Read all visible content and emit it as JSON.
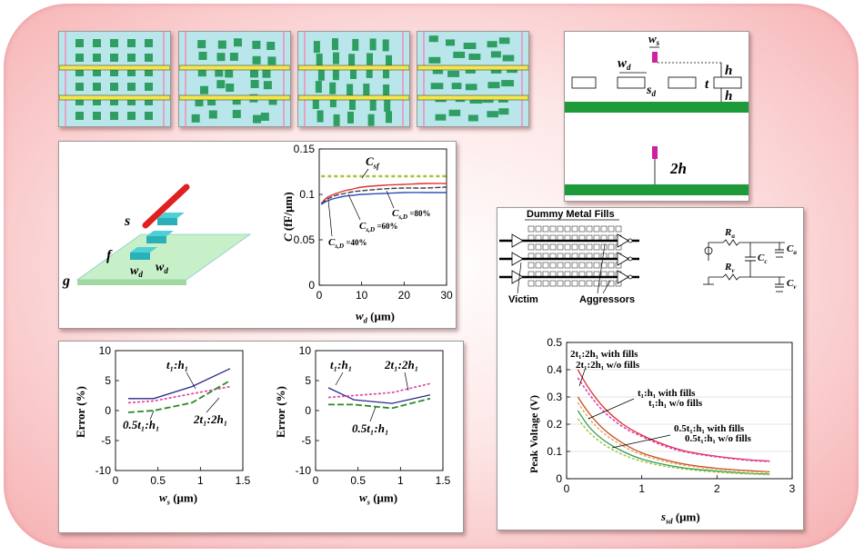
{
  "colors": {
    "fill_thumb_bg": "#b8e6ea",
    "fill_square": "#2e9e62",
    "signal_line": "#f2e84a",
    "ground_plane": "#1f9a3a",
    "c_sf_line": "#a6c23a",
    "cs_line_1": "#e23030",
    "cs_line_2": "#404040",
    "cs_line_3": "#3050c0"
  },
  "geometry_panel": {
    "ws_label": "w",
    "ws_sub": "s",
    "wd_label": "w",
    "wd_sub": "d",
    "sd_label": "s",
    "sd_sub": "d",
    "h_label": "h",
    "t_label": "t",
    "h2_label": "h",
    "twoh_label": "2h"
  },
  "structure_3d": {
    "s_label": "s",
    "f_label": "f",
    "g_label": "g",
    "wd1_label": "w",
    "wd1_sub": "d",
    "wd2_label": "w",
    "wd2_sub": "d"
  },
  "chart_capacitance": {
    "ytitle": "C",
    "yunit": "(fF/μm)",
    "xtitle": "w",
    "xsub": "d",
    "xunit": "(μm)",
    "yticks": [
      "0.15",
      "0.1",
      "0.05",
      "0"
    ],
    "xticks": [
      "0",
      "10",
      "20",
      "30"
    ],
    "csf_main": "C",
    "csf_sub": "sf",
    "ann": [
      {
        "main": "C",
        "sub": "s,D",
        "tail": " =80%"
      },
      {
        "main": "C",
        "sub": "s,D",
        "tail": " =60%"
      },
      {
        "main": "C",
        "sub": "s,D",
        "tail": " =40%"
      }
    ]
  },
  "chart_error_left": {
    "ytitle": "Error (%)",
    "xtitle": "w",
    "xsub": "s",
    "xunit": "(μm)",
    "yticks": [
      "10",
      "5",
      "0",
      "-5",
      "-10"
    ],
    "xticks": [
      "0",
      "0.5",
      "1",
      "1.5"
    ],
    "legend": [
      {
        "main": "t₁:h₁"
      },
      {
        "main": "0.5t₁:h₁"
      },
      {
        "main": "2t₁:2h₁"
      }
    ]
  },
  "chart_error_right": {
    "ytitle": "Error (%)",
    "xtitle": "w",
    "xsub": "s",
    "xunit": "(μm)",
    "yticks": [
      "10",
      "5",
      "0",
      "-5",
      "-10"
    ],
    "xticks": [
      "0",
      "0.5",
      "1",
      "1.5"
    ],
    "legend": [
      {
        "main": "t₁:h₁"
      },
      {
        "main": "2t₁:2h₁"
      },
      {
        "main": "0.5t₁:h₁"
      }
    ]
  },
  "circuit_panel": {
    "dummy_fills_label": "Dummy Metal Fills",
    "victim_label": "Victim",
    "aggressors_label": "Aggressors",
    "ra_label": "R",
    "ra_sub": "a",
    "rv_label": "R",
    "rv_sub": "v",
    "cc_label": "C",
    "cc_sub": "c",
    "ca_label": "C",
    "ca_sub": "a",
    "cv_label": "C",
    "cv_sub": "v"
  },
  "chart_peak": {
    "ytitle": "Peak Voltage (V)",
    "xtitle": "s",
    "xsub": "sd",
    "xunit": "(μm)",
    "yticks": [
      "0.5",
      "0.4",
      "0.3",
      "0.2",
      "0.1",
      "0"
    ],
    "xticks": [
      "0",
      "1",
      "2",
      "3"
    ],
    "legend": [
      "2t₁:2h₁ with fills",
      "2t₁:2h₁ w/o fills",
      "t₁:h₁ with fills",
      "t₁:h₁ w/o fills",
      "0.5t₁:h₁ with fills",
      "0.5t₁:h₁ w/o fills"
    ]
  },
  "chart_data": [
    {
      "type": "line",
      "title": "",
      "xlabel": "w_d (μm)",
      "ylabel": "C (fF/μm)",
      "xlim": [
        0,
        30
      ],
      "ylim": [
        0,
        0.15
      ],
      "x": [
        0.5,
        2,
        4,
        6,
        8,
        10,
        15,
        20,
        25,
        30
      ],
      "series": [
        {
          "name": "C_sf",
          "values": [
            0.12,
            0.12,
            0.12,
            0.12,
            0.12,
            0.12,
            0.12,
            0.12,
            0.12,
            0.12
          ]
        },
        {
          "name": "C_s,D =80%",
          "values": [
            0.09,
            0.097,
            0.101,
            0.104,
            0.106,
            0.108,
            0.11,
            0.111,
            0.112,
            0.112
          ]
        },
        {
          "name": "C_s,D =60%",
          "values": [
            0.09,
            0.095,
            0.099,
            0.101,
            0.103,
            0.104,
            0.106,
            0.107,
            0.107,
            0.108
          ]
        },
        {
          "name": "C_s,D =40%",
          "values": [
            0.089,
            0.093,
            0.096,
            0.098,
            0.099,
            0.1,
            0.101,
            0.102,
            0.102,
            0.102
          ]
        }
      ]
    },
    {
      "type": "line",
      "xlabel": "w_s (μm)",
      "ylabel": "Error (%)",
      "xlim": [
        0,
        1.5
      ],
      "ylim": [
        -10,
        10
      ],
      "x": [
        0.15,
        0.45,
        0.9,
        1.35
      ],
      "series": [
        {
          "name": "t1:h1",
          "values": [
            2.0,
            2.0,
            4.0,
            7.0
          ]
        },
        {
          "name": "2t1:2h1",
          "values": [
            1.3,
            1.6,
            2.8,
            4.0
          ]
        },
        {
          "name": "0.5t1:h1",
          "values": [
            -0.3,
            0.0,
            1.3,
            5.0
          ]
        }
      ]
    },
    {
      "type": "line",
      "xlabel": "w_s (μm)",
      "ylabel": "Error (%)",
      "xlim": [
        0,
        1.5
      ],
      "ylim": [
        -10,
        10
      ],
      "x": [
        0.15,
        0.45,
        0.9,
        1.35
      ],
      "series": [
        {
          "name": "t1:h1",
          "values": [
            3.8,
            1.8,
            1.2,
            2.6
          ]
        },
        {
          "name": "2t1:2h1",
          "values": [
            2.2,
            2.5,
            3.0,
            4.5
          ]
        },
        {
          "name": "0.5t1:h1",
          "values": [
            1.0,
            1.0,
            0.4,
            2.0
          ]
        }
      ]
    },
    {
      "type": "line",
      "xlabel": "s_sd (μm)",
      "ylabel": "Peak Voltage (V)",
      "xlim": [
        0,
        3
      ],
      "ylim": [
        0,
        0.5
      ],
      "x": [
        0.15,
        0.3,
        0.5,
        0.75,
        1.0,
        1.3,
        1.6,
        2.0,
        2.4,
        2.7
      ],
      "series": [
        {
          "name": "2t1:2h1 with fills",
          "values": [
            0.4,
            0.33,
            0.26,
            0.2,
            0.16,
            0.125,
            0.1,
            0.082,
            0.07,
            0.065
          ]
        },
        {
          "name": "2t1:2h1 w/o fills",
          "values": [
            0.37,
            0.31,
            0.245,
            0.19,
            0.155,
            0.12,
            0.097,
            0.08,
            0.068,
            0.063
          ]
        },
        {
          "name": "t1:h1 with fills",
          "values": [
            0.3,
            0.24,
            0.18,
            0.13,
            0.095,
            0.07,
            0.052,
            0.038,
            0.03,
            0.025
          ]
        },
        {
          "name": "t1:h1 w/o fills",
          "values": [
            0.28,
            0.22,
            0.165,
            0.12,
            0.088,
            0.064,
            0.048,
            0.035,
            0.027,
            0.023
          ]
        },
        {
          "name": "0.5t1:h1 with fills",
          "values": [
            0.25,
            0.19,
            0.14,
            0.1,
            0.072,
            0.052,
            0.038,
            0.028,
            0.02,
            0.017
          ]
        },
        {
          "name": "0.5t1:h1 w/o fills",
          "values": [
            0.22,
            0.17,
            0.125,
            0.088,
            0.064,
            0.046,
            0.034,
            0.024,
            0.018,
            0.015
          ]
        }
      ]
    }
  ]
}
